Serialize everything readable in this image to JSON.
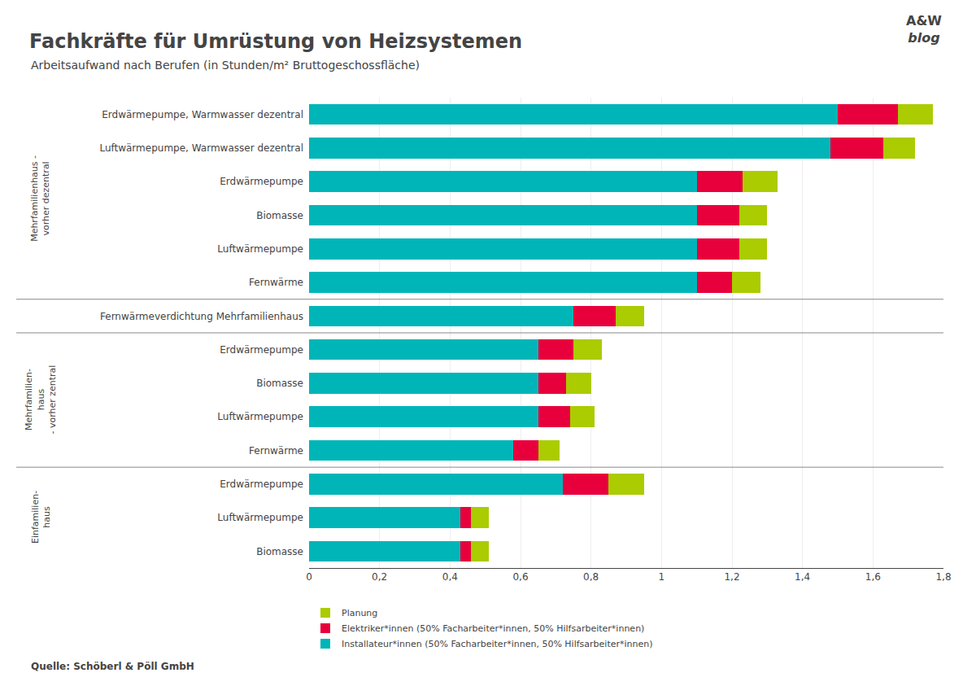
{
  "chart_data": {
    "type": "bar",
    "orientation": "horizontal",
    "stacked": true,
    "title": "Fachkräfte für Umrüstung von Heizsystemen",
    "subtitle": "Arbeitsaufwand nach Berufen (in Stunden/m² Bruttogeschossfläche)",
    "source": "Quelle: Schöberl & Pöll GmbH",
    "logo": [
      "A&W",
      "blog"
    ],
    "categories": [
      "Erdwärmepumpe, Warmwasser dezentral",
      "Luftwärmepumpe, Warmwasser dezentral",
      "Erdwärmepumpe",
      "Biomasse",
      "Luftwärmepumpe",
      "Fernwärme",
      "Fernwärmeverdichtung Mehrfamilienhaus",
      "Erdwärmepumpe",
      "Biomasse",
      "Luftwärmepumpe",
      "Fernwärme",
      "Erdwärmepumpe",
      "Luftwärmepumpe",
      "Biomasse"
    ],
    "series": [
      {
        "name": "Installateur*innen (50% Facharbeiter*innen, 50% Hilfsarbeiter*innen)",
        "color": "#00b5b8",
        "values": [
          1.5,
          1.48,
          1.1,
          1.1,
          1.1,
          1.1,
          0.75,
          0.65,
          0.65,
          0.65,
          0.58,
          0.72,
          0.43,
          0.43
        ]
      },
      {
        "name": "Elektriker*innen (50% Facharbeiter*innen, 50% Hilfsarbeiter*innen)",
        "color": "#e8003c",
        "values": [
          0.17,
          0.15,
          0.13,
          0.12,
          0.12,
          0.1,
          0.12,
          0.1,
          0.08,
          0.09,
          0.07,
          0.13,
          0.03,
          0.03
        ]
      },
      {
        "name": "Planung",
        "color": "#aacc00",
        "values": [
          0.1,
          0.09,
          0.1,
          0.08,
          0.08,
          0.08,
          0.08,
          0.08,
          0.07,
          0.07,
          0.06,
          0.1,
          0.05,
          0.05
        ]
      }
    ],
    "xlim": [
      0,
      1.8
    ],
    "xticks": [
      0,
      {
        "value": 0.2,
        "label": "0,2"
      },
      {
        "value": 0.4,
        "label": "0,4"
      },
      {
        "value": 0.6,
        "label": "0,6"
      },
      {
        "value": 0.8,
        "label": "0,8"
      },
      1,
      {
        "value": 1.2,
        "label": "1,2"
      },
      {
        "value": 1.4,
        "label": "1,4"
      },
      {
        "value": 1.6,
        "label": "1,6"
      },
      {
        "value": 1.8,
        "label": "1,8"
      }
    ],
    "grid": true,
    "legend": "lower left",
    "groups": [
      {
        "label": "Mehrfamilienhaus -\nvorher dezentral",
        "first": 0,
        "last": 5
      },
      {
        "label": "Mehrfamilien-\nhaus\n- vorher zentral",
        "first": 7,
        "last": 10
      },
      {
        "label": "Einfamilien-\nhaus",
        "first": 11,
        "last": 13
      }
    ]
  }
}
